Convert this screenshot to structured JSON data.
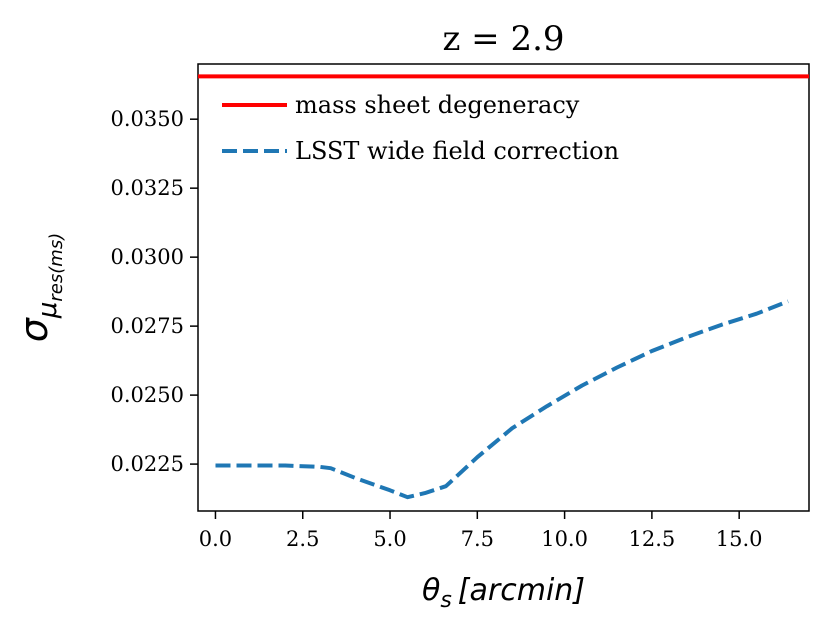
{
  "chart_data": {
    "type": "line",
    "title": "z = 2.9",
    "xlabel": {
      "symbol": "θ",
      "subscript": "s",
      "unit_open": "[",
      "unit": "arcmin",
      "unit_close": "]"
    },
    "ylabel": {
      "symbol": "σ",
      "subscript_symbol": "μ",
      "subscript_text": "res(ms)"
    },
    "xlim": [
      -0.5,
      17.0
    ],
    "ylim": [
      0.0208,
      0.037
    ],
    "x_ticks": [
      0.0,
      2.5,
      5.0,
      7.5,
      10.0,
      12.5,
      15.0
    ],
    "x_tick_labels": [
      "0.0",
      "2.5",
      "5.0",
      "7.5",
      "10.0",
      "12.5",
      "15.0"
    ],
    "y_ticks": [
      0.0225,
      0.025,
      0.0275,
      0.03,
      0.0325,
      0.035
    ],
    "y_tick_labels": [
      "0.0225",
      "0.0250",
      "0.0275",
      "0.0300",
      "0.0325",
      "0.0350"
    ],
    "grid": false,
    "legend_position": "top-left",
    "series": [
      {
        "name": "mass sheet degeneracy",
        "kind": "hline",
        "y": 0.03655,
        "color": "#ff0000",
        "style": "solid"
      },
      {
        "name": "LSST wide field correction",
        "kind": "line",
        "color": "#1f77b4",
        "style": "dashed",
        "x": [
          0.0,
          1.0,
          2.0,
          3.0,
          3.3,
          4.0,
          5.0,
          5.5,
          6.0,
          6.6,
          7.5,
          8.5,
          9.5,
          10.5,
          11.5,
          12.5,
          13.5,
          14.5,
          15.5,
          16.4
        ],
        "y": [
          0.02245,
          0.02245,
          0.02245,
          0.0224,
          0.02235,
          0.022,
          0.02155,
          0.0213,
          0.02145,
          0.0217,
          0.02275,
          0.0238,
          0.0246,
          0.02535,
          0.026,
          0.0266,
          0.0271,
          0.02755,
          0.02795,
          0.0284
        ]
      }
    ]
  }
}
